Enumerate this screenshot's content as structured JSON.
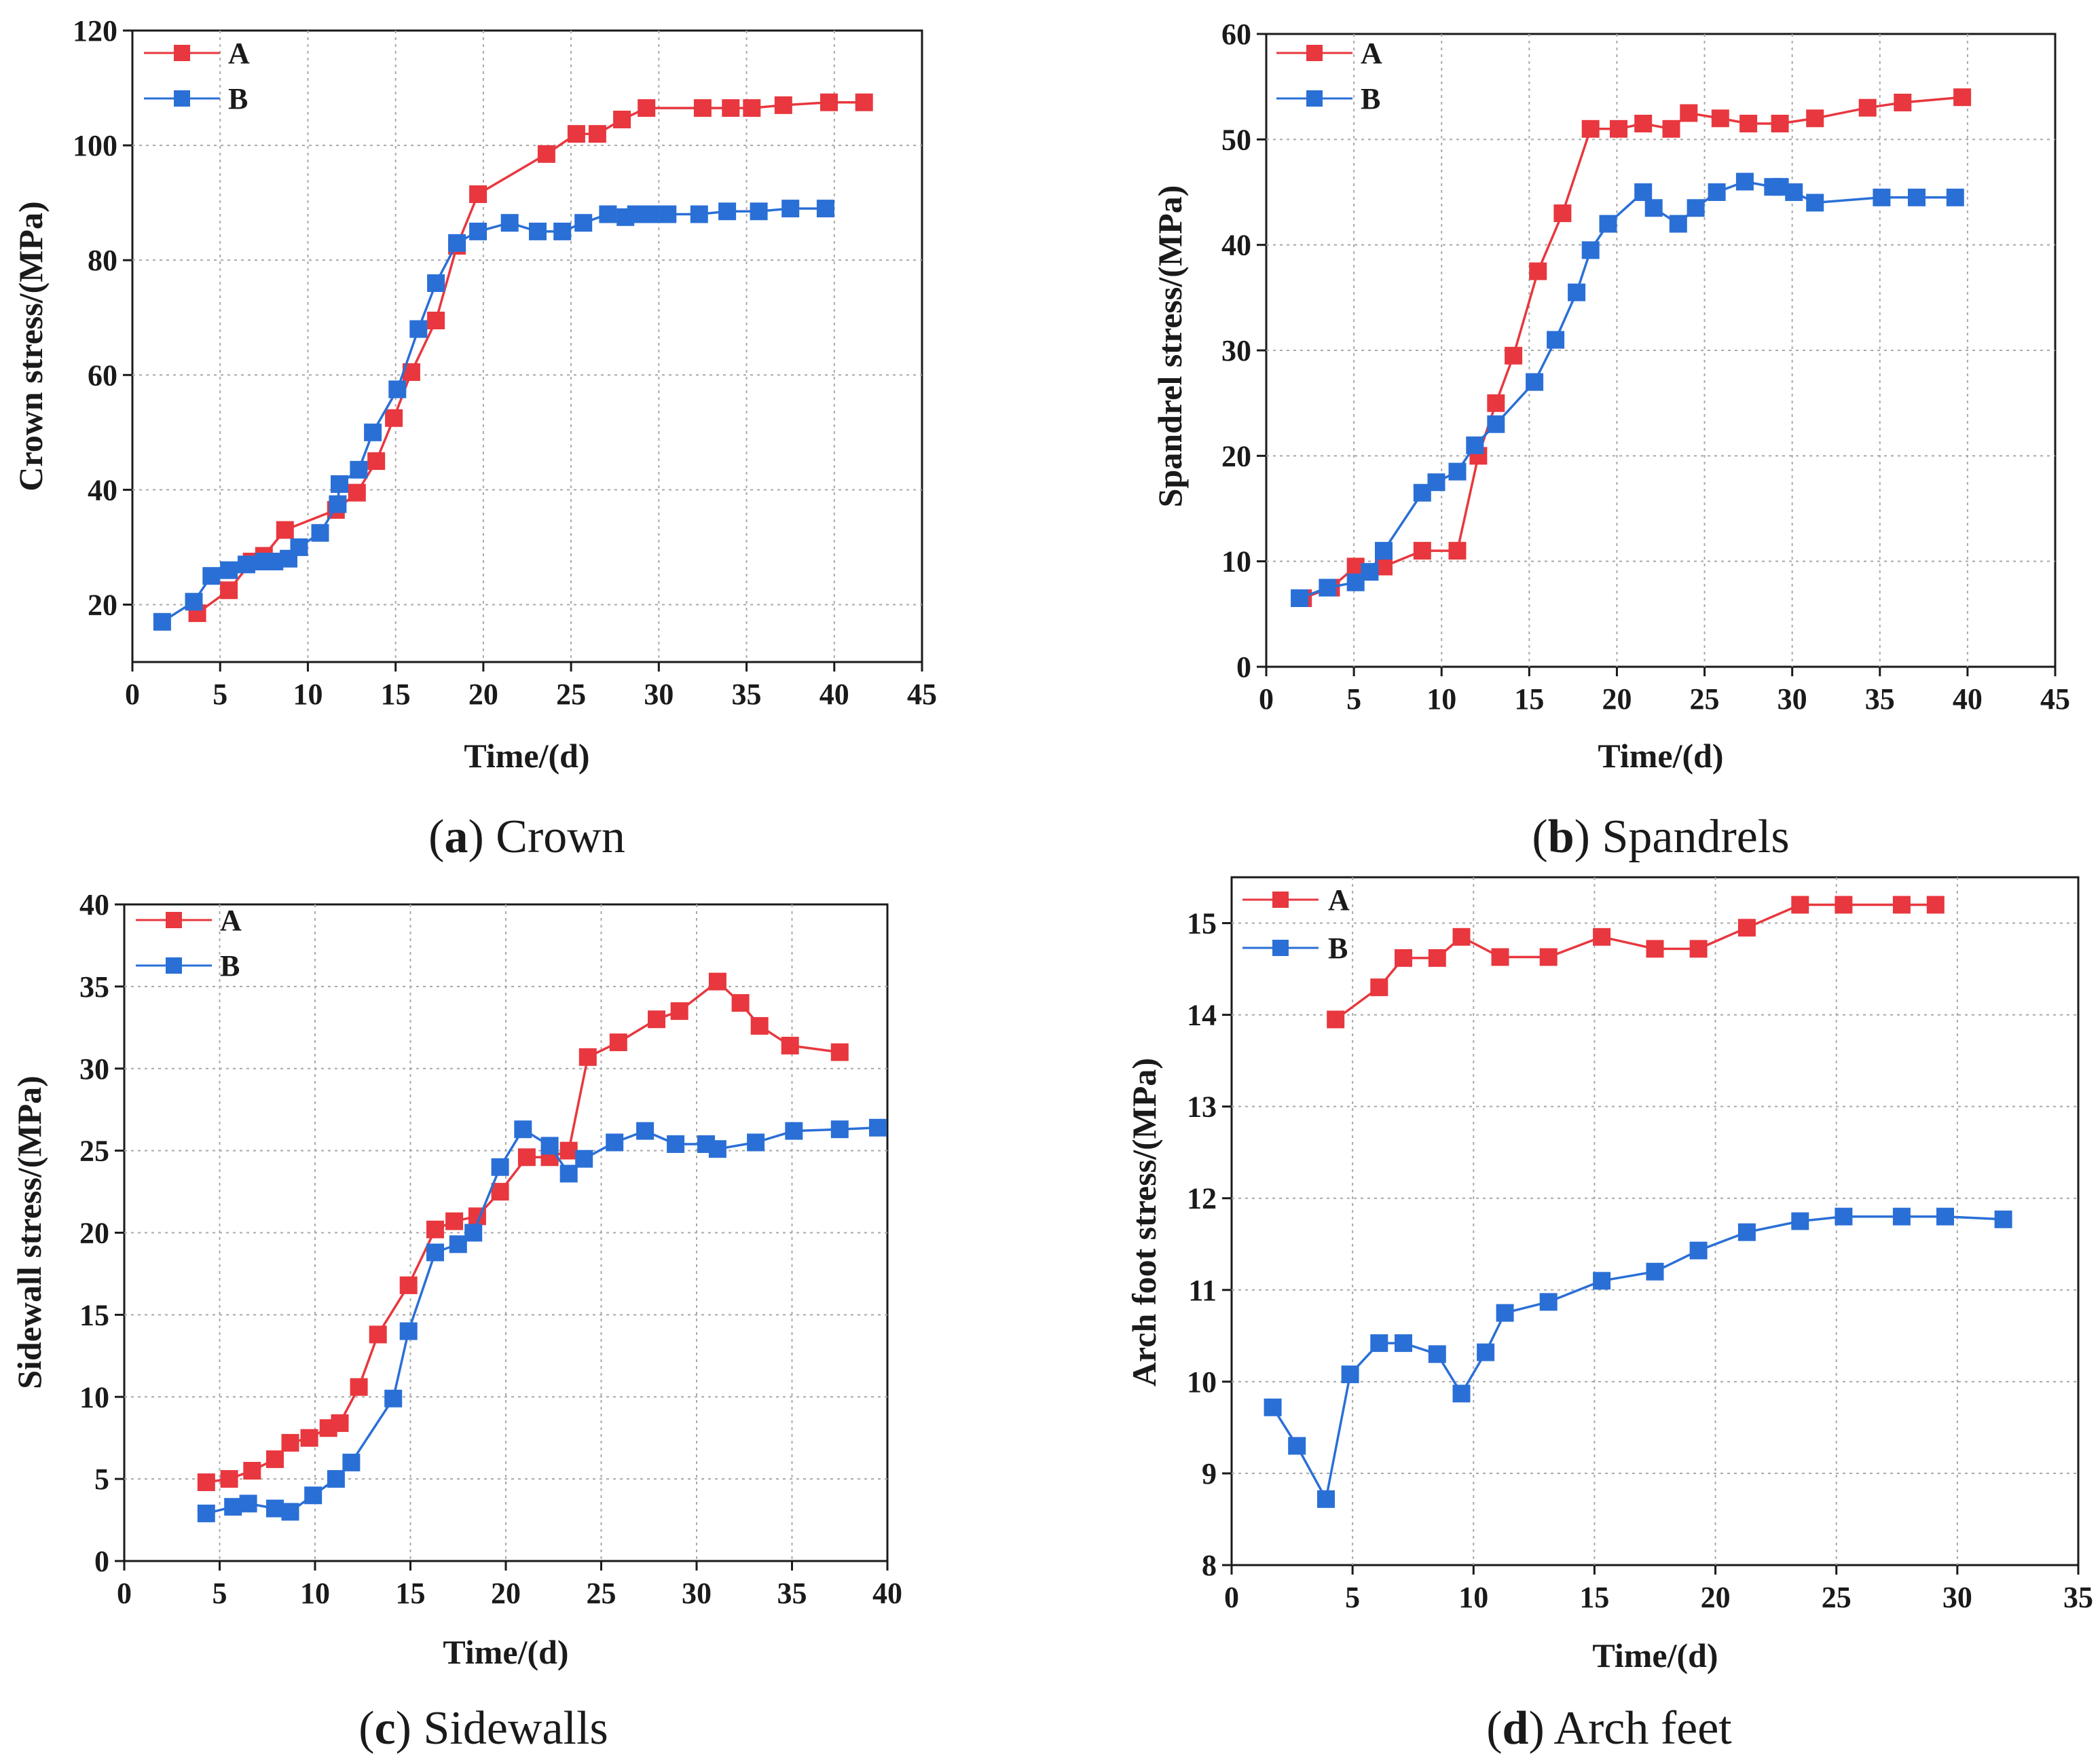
{
  "colors": {
    "A": "#e8373e",
    "B": "#2a6fd6",
    "axis": "#1a1a1a",
    "grid": "#a8a8a8"
  },
  "chart_data": [
    {
      "type": "line",
      "caption_letter": "a",
      "caption_text": "Crown",
      "xlabel": "Time/(d)",
      "ylabel": "Crown stress/(MPa)",
      "xlim": [
        0,
        45
      ],
      "ylim": [
        10,
        120
      ],
      "xticks": [
        0,
        5,
        10,
        15,
        20,
        25,
        30,
        35,
        40,
        45
      ],
      "yticks": [
        20,
        40,
        60,
        80,
        100,
        120
      ],
      "legend": "top-left",
      "series": [
        {
          "name": "A",
          "x": [
            3.7,
            5.5,
            6.8,
            7.5,
            8.7,
            11.6,
            12.8,
            13.9,
            14.9,
            15.9,
            17.3,
            18.5,
            19.7,
            23.6,
            25.3,
            26.5,
            27.9,
            29.3,
            32.5,
            34.1,
            35.3,
            37.1,
            39.7,
            41.7
          ],
          "y": [
            18.5,
            22.5,
            27.5,
            28.5,
            33,
            36.5,
            39.5,
            45,
            52.5,
            60.5,
            69.5,
            82.5,
            91.5,
            98.5,
            102,
            102,
            104.5,
            106.5,
            106.5,
            106.5,
            106.5,
            107,
            107.5,
            107.5
          ]
        },
        {
          "name": "B",
          "x": [
            1.7,
            3.5,
            4.5,
            5.5,
            6.5,
            7.5,
            8.1,
            8.9,
            9.5,
            10.7,
            11.7,
            11.8,
            12.9,
            13.7,
            15.1,
            16.3,
            17.3,
            18.5,
            19.7,
            21.5,
            23.1,
            24.5,
            25.7,
            27.1,
            28.1,
            28.7,
            29.5,
            30.5,
            32.3,
            33.9,
            35.7,
            37.5,
            39.5
          ],
          "y": [
            17,
            20.5,
            25,
            26,
            27,
            27.5,
            27.5,
            28,
            30,
            32.5,
            37.5,
            41,
            43.5,
            50,
            57.5,
            68,
            76,
            83,
            85,
            86.5,
            85,
            85,
            86.5,
            88,
            87.5,
            88,
            88,
            88,
            88,
            88.5,
            88.5,
            89,
            89
          ]
        }
      ]
    },
    {
      "type": "line",
      "caption_letter": "b",
      "caption_text": "Spandrels",
      "xlabel": "Time/(d)",
      "ylabel": "Spandrel stress/(MPa)",
      "xlim": [
        0,
        45
      ],
      "ylim": [
        0,
        60
      ],
      "xticks": [
        0,
        5,
        10,
        15,
        20,
        25,
        30,
        35,
        40,
        45
      ],
      "yticks": [
        0,
        10,
        20,
        30,
        40,
        50,
        60
      ],
      "legend": "top-left",
      "series": [
        {
          "name": "A",
          "x": [
            2.1,
            3.7,
            5.1,
            6.7,
            8.9,
            10.9,
            12.1,
            13.1,
            14.1,
            15.5,
            16.9,
            18.5,
            20.1,
            21.5,
            23.1,
            24.1,
            25.9,
            27.5,
            29.3,
            31.3,
            34.3,
            36.3,
            39.7
          ],
          "y": [
            6.5,
            7.5,
            9.5,
            9.5,
            11,
            11,
            20,
            25,
            29.5,
            37.5,
            43,
            51,
            51,
            51.5,
            51,
            52.5,
            52,
            51.5,
            51.5,
            52,
            53,
            53.5,
            54
          ]
        },
        {
          "name": "B",
          "x": [
            1.9,
            3.5,
            5.1,
            5.9,
            6.7,
            8.9,
            9.7,
            10.9,
            11.9,
            13.1,
            15.3,
            16.5,
            17.7,
            18.5,
            19.5,
            21.5,
            22.1,
            23.5,
            24.5,
            25.7,
            27.3,
            28.9,
            29.3,
            30.1,
            31.3,
            35.1,
            37.1,
            39.3
          ],
          "y": [
            6.5,
            7.5,
            8,
            9,
            11,
            16.5,
            17.5,
            18.5,
            21,
            23,
            27,
            31,
            35.5,
            39.5,
            42,
            45,
            43.5,
            42,
            43.5,
            45,
            46,
            45.5,
            45.5,
            45,
            44,
            44.5,
            44.5,
            44.5
          ]
        }
      ]
    },
    {
      "type": "line",
      "caption_letter": "c",
      "caption_text": "Sidewalls",
      "xlabel": "Time/(d)",
      "ylabel": "Sidewall stress/(MPa)",
      "xlim": [
        0,
        40
      ],
      "ylim": [
        0,
        40
      ],
      "xticks": [
        0,
        5,
        10,
        15,
        20,
        25,
        30,
        35,
        40
      ],
      "yticks": [
        0,
        5,
        10,
        15,
        20,
        25,
        30,
        35,
        40
      ],
      "legend": "top-left",
      "series": [
        {
          "name": "A",
          "x": [
            4.3,
            5.5,
            6.7,
            7.9,
            8.7,
            9.7,
            10.7,
            11.3,
            12.3,
            13.3,
            14.9,
            16.3,
            17.3,
            18.5,
            19.7,
            21.1,
            22.3,
            23.3,
            24.3,
            25.9,
            27.9,
            29.1,
            31.1,
            32.3,
            33.3,
            34.9,
            37.5
          ],
          "y": [
            4.8,
            5,
            5.5,
            6.2,
            7.2,
            7.5,
            8.1,
            8.4,
            10.6,
            13.8,
            16.8,
            20.2,
            20.7,
            21,
            22.5,
            24.6,
            24.6,
            25,
            30.7,
            31.6,
            33,
            33.5,
            35.3,
            34,
            32.6,
            31.4,
            31
          ]
        },
        {
          "name": "B",
          "x": [
            4.3,
            5.7,
            6.5,
            7.9,
            8.7,
            9.9,
            11.1,
            11.9,
            14.1,
            14.9,
            16.3,
            17.5,
            18.3,
            19.7,
            20.9,
            22.3,
            23.3,
            24.1,
            25.7,
            27.3,
            28.9,
            30.5,
            31.1,
            33.1,
            35.1,
            37.5,
            39.5
          ],
          "y": [
            2.9,
            3.3,
            3.5,
            3.2,
            3,
            4,
            5,
            6,
            9.9,
            14,
            18.8,
            19.3,
            20,
            24,
            26.3,
            25.3,
            23.6,
            24.5,
            25.5,
            26.2,
            25.4,
            25.4,
            25.1,
            25.5,
            26.2,
            26.3,
            26.4
          ]
        }
      ]
    },
    {
      "type": "line",
      "caption_letter": "d",
      "caption_text": "Arch feet",
      "xlabel": "Time/(d)",
      "ylabel": "Arch foot stress/(MPa)",
      "xlim": [
        0,
        35
      ],
      "ylim": [
        8,
        15.5
      ],
      "xticks": [
        0,
        5,
        10,
        15,
        20,
        25,
        30,
        35
      ],
      "yticks": [
        8,
        9,
        10,
        11,
        12,
        13,
        14,
        15
      ],
      "legend": "top-left",
      "series": [
        {
          "name": "A",
          "x": [
            4.3,
            6.1,
            7.1,
            8.5,
            9.5,
            11.1,
            13.1,
            15.3,
            17.5,
            19.3,
            21.3,
            23.5,
            25.3,
            27.7,
            29.1
          ],
          "y": [
            13.95,
            14.3,
            14.62,
            14.62,
            14.85,
            14.63,
            14.63,
            14.85,
            14.72,
            14.72,
            14.95,
            15.2,
            15.2,
            15.2,
            15.2
          ]
        },
        {
          "name": "B",
          "x": [
            1.7,
            2.7,
            3.9,
            4.9,
            6.1,
            7.1,
            8.5,
            9.5,
            10.5,
            11.3,
            13.1,
            15.3,
            17.5,
            19.3,
            21.3,
            23.5,
            25.3,
            27.7,
            29.5,
            31.9
          ],
          "y": [
            9.72,
            9.3,
            8.72,
            10.08,
            10.42,
            10.42,
            10.3,
            9.87,
            10.32,
            10.75,
            10.87,
            11.1,
            11.2,
            11.43,
            11.63,
            11.75,
            11.8,
            11.8,
            11.8,
            11.77
          ]
        }
      ]
    }
  ]
}
